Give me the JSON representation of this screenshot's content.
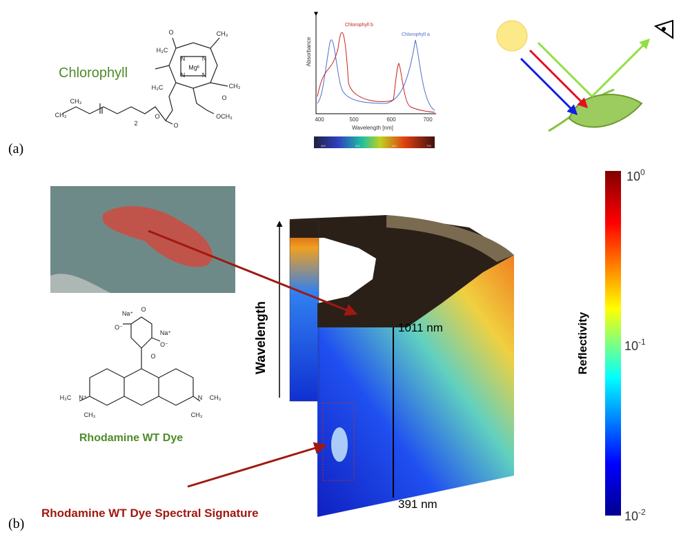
{
  "panel_a": {
    "label": "(a)",
    "molecule_name": "Chlorophyll",
    "structure_atoms": [
      "O",
      "CH₃",
      "H₃C",
      "N",
      "N",
      "N",
      "N",
      "Mgᴵᴵ",
      "H₃C",
      "CH₃",
      "CH₃",
      "CH₃",
      "2",
      "O",
      "O",
      "O",
      "OCH₃"
    ],
    "spectrum": {
      "y_label": "Absorbance",
      "x_label": "Wavelength [nm]",
      "x_ticks": [
        "400",
        "500",
        "600",
        "700"
      ],
      "curve_labels": [
        "Chlorophyll b",
        "Chlorophyll a"
      ],
      "bar_ticks": [
        "400",
        "500",
        "600",
        "700"
      ]
    }
  },
  "panel_b": {
    "label": "(b)",
    "dye_name": "Rhodamine WT Dye",
    "structure_atoms": [
      "Na⁺",
      "O⁻",
      "O",
      "Na⁺",
      "O⁻",
      "O",
      "H₃C",
      "N⁺",
      "N",
      "CH₃",
      "CH₃",
      "CH₃"
    ],
    "axis_label": "Wavelength",
    "upper_wavelength": "1011 nm",
    "lower_wavelength": "391 nm",
    "signature_label": "Rhodamine WT Dye Spectral Signature",
    "colorbar": {
      "title": "Reflectivity",
      "ticks": [
        {
          "base": "10",
          "exp": "0"
        },
        {
          "base": "10",
          "exp": "-1"
        },
        {
          "base": "10",
          "exp": "-2"
        }
      ]
    }
  }
}
